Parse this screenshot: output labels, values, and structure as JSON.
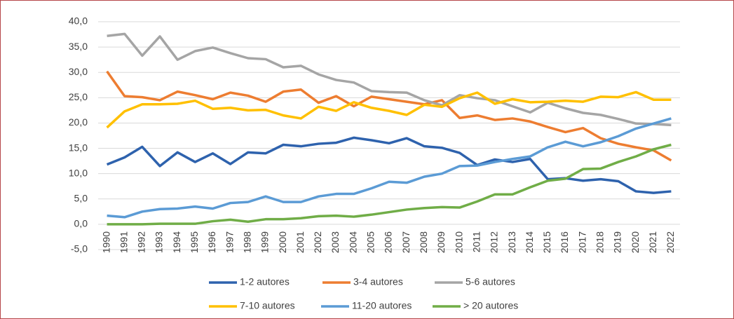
{
  "chart_data": {
    "type": "line",
    "categories": [
      "1990",
      "1991",
      "1992",
      "1993",
      "1994",
      "1995",
      "1996",
      "1997",
      "1998",
      "1999",
      "2000",
      "2001",
      "2002",
      "2003",
      "2004",
      "2005",
      "2006",
      "2007",
      "2008",
      "2009",
      "2010",
      "2011",
      "2012",
      "2013",
      "2014",
      "2015",
      "2016",
      "2017",
      "2018",
      "2019",
      "2020",
      "2021",
      "2022"
    ],
    "series": [
      {
        "name": "1-2 autores",
        "color": "#2e62ad",
        "values": [
          11.8,
          13.2,
          15.3,
          11.5,
          14.2,
          12.3,
          14.0,
          11.9,
          14.2,
          14.0,
          15.7,
          15.4,
          15.9,
          16.1,
          17.1,
          16.6,
          16.0,
          17.0,
          15.4,
          15.1,
          14.1,
          11.7,
          12.8,
          12.3,
          12.9,
          8.9,
          9.1,
          8.6,
          8.9,
          8.5,
          6.5,
          6.2,
          6.5
        ]
      },
      {
        "name": "3-4 autores",
        "color": "#ed7d31",
        "values": [
          30.2,
          25.3,
          25.1,
          24.5,
          26.2,
          25.5,
          24.7,
          26.0,
          25.4,
          24.2,
          26.2,
          26.6,
          24.0,
          25.3,
          23.3,
          25.2,
          24.7,
          24.2,
          23.7,
          24.5,
          21.0,
          21.5,
          20.6,
          20.9,
          20.3,
          19.2,
          18.2,
          19.0,
          17.0,
          15.9,
          15.2,
          14.6,
          12.6
        ]
      },
      {
        "name": "5-6 autores",
        "color": "#a5a5a5",
        "values": [
          37.2,
          37.6,
          33.3,
          37.1,
          32.5,
          34.2,
          34.9,
          33.8,
          32.8,
          32.6,
          31.0,
          31.3,
          29.6,
          28.5,
          28.0,
          26.3,
          26.1,
          26.0,
          24.5,
          23.5,
          25.5,
          24.9,
          24.5,
          23.3,
          22.1,
          24.0,
          22.9,
          22.0,
          21.6,
          20.8,
          19.9,
          19.8,
          19.6
        ]
      },
      {
        "name": "7-10 autores",
        "color": "#ffc000",
        "values": [
          19.1,
          22.3,
          23.7,
          23.7,
          23.8,
          24.4,
          22.8,
          23.0,
          22.5,
          22.6,
          21.5,
          20.9,
          23.2,
          22.4,
          24.1,
          23.0,
          22.4,
          21.6,
          23.6,
          23.2,
          24.9,
          26.0,
          23.8,
          24.7,
          24.1,
          24.2,
          24.4,
          24.2,
          25.2,
          25.1,
          26.1,
          24.6,
          24.6
        ]
      },
      {
        "name": "11-20 autores",
        "color": "#5b9bd5",
        "values": [
          1.7,
          1.4,
          2.5,
          3.0,
          3.1,
          3.5,
          3.1,
          4.2,
          4.4,
          5.5,
          4.4,
          4.4,
          5.5,
          6.0,
          6.0,
          7.1,
          8.4,
          8.2,
          9.4,
          10.0,
          11.5,
          11.6,
          12.3,
          12.9,
          13.4,
          15.2,
          16.3,
          15.4,
          16.2,
          17.4,
          18.9,
          19.9,
          20.9
        ]
      },
      {
        "name": "> 20 autores",
        "color": "#70ad47",
        "values": [
          0,
          0,
          0,
          0.1,
          0.1,
          0.1,
          0.6,
          0.9,
          0.5,
          1.0,
          1.0,
          1.2,
          1.6,
          1.7,
          1.5,
          1.9,
          2.4,
          2.9,
          3.2,
          3.4,
          3.3,
          4.5,
          5.9,
          5.9,
          7.3,
          8.6,
          9.0,
          10.9,
          11.0,
          12.3,
          13.4,
          14.8,
          15.7
        ]
      }
    ],
    "ylim": [
      -5,
      40
    ],
    "yticks": [
      {
        "value": -5,
        "label": "-5,0"
      },
      {
        "value": 0,
        "label": "0,0"
      },
      {
        "value": 5,
        "label": "5,0"
      },
      {
        "value": 10,
        "label": "10,0"
      },
      {
        "value": 15,
        "label": "15,0"
      },
      {
        "value": 20,
        "label": "20,0"
      },
      {
        "value": 25,
        "label": "25,0"
      },
      {
        "value": 30,
        "label": "30,0"
      },
      {
        "value": 35,
        "label": "35,0"
      },
      {
        "value": 40,
        "label": "40,0"
      }
    ],
    "grid": true,
    "legend": "bottom"
  }
}
